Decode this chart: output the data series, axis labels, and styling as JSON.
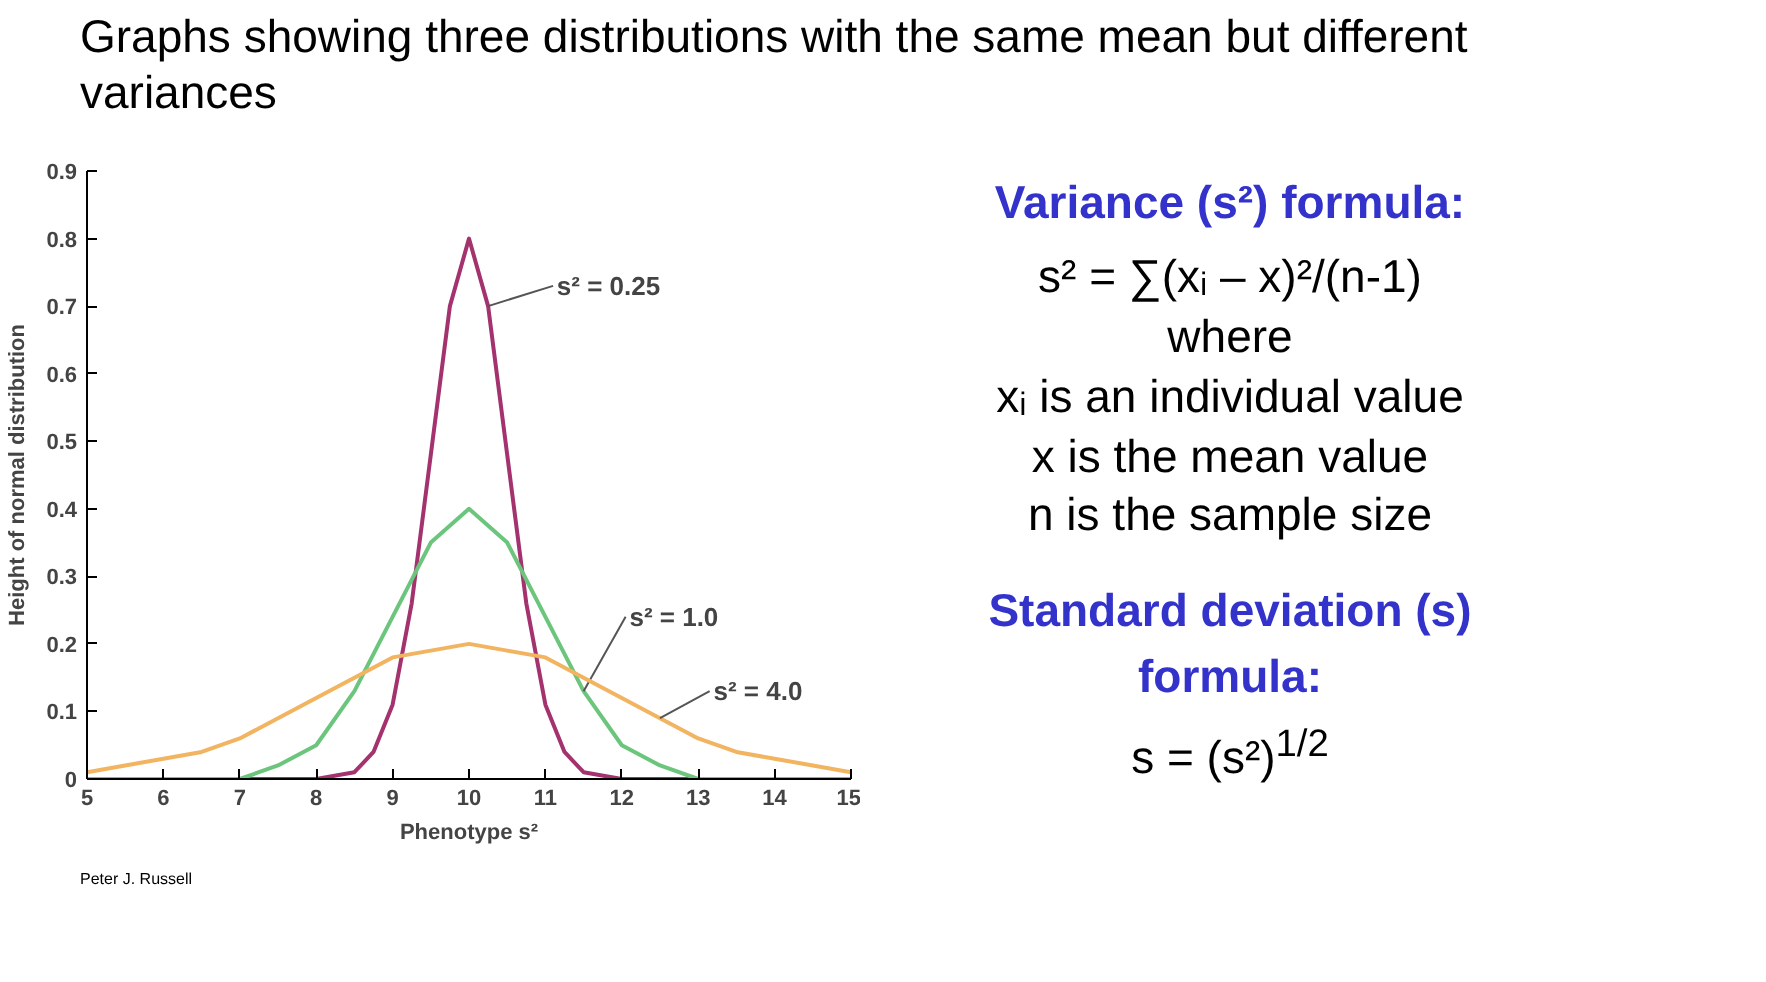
{
  "chart_data": {
    "type": "line",
    "title": "Graphs showing three distributions with the same mean but different variances",
    "xlabel": "Phenotype s²",
    "ylabel": "Height of normal distribution",
    "xlim": [
      5,
      15
    ],
    "xticks": [
      5,
      6,
      7,
      8,
      9,
      10,
      11,
      12,
      13,
      14,
      15
    ],
    "ylim": [
      0,
      0.9
    ],
    "yticks": [
      0,
      0.1,
      0.2,
      0.3,
      0.4,
      0.5,
      0.6,
      0.7,
      0.8,
      0.9
    ],
    "grid": false,
    "marker": "none",
    "line_style": "solid",
    "series": [
      {
        "name": "s² = 0.25",
        "color": "#a3326f",
        "x": [
          5,
          8,
          8.5,
          8.75,
          9,
          9.25,
          9.5,
          9.75,
          10,
          10.25,
          10.5,
          10.75,
          11,
          11.25,
          11.5,
          12,
          15
        ],
        "values": [
          0,
          0,
          0.01,
          0.04,
          0.11,
          0.26,
          0.48,
          0.7,
          0.8,
          0.7,
          0.48,
          0.26,
          0.11,
          0.04,
          0.01,
          0,
          0
        ]
      },
      {
        "name": "s² = 1.0",
        "color": "#6cc57c",
        "x": [
          5,
          7,
          7.5,
          8,
          8.5,
          9,
          9.5,
          10,
          10.5,
          11,
          11.5,
          12,
          12.5,
          13,
          15
        ],
        "values": [
          0,
          0,
          0.02,
          0.05,
          0.13,
          0.24,
          0.35,
          0.4,
          0.35,
          0.24,
          0.13,
          0.05,
          0.02,
          0,
          0
        ]
      },
      {
        "name": "s² = 4.0",
        "color": "#f2b461",
        "x": [
          5,
          5.5,
          6,
          6.5,
          7,
          7.5,
          8,
          8.5,
          9,
          9.5,
          10,
          10.5,
          11,
          11.5,
          12,
          12.5,
          13,
          13.5,
          14,
          14.5,
          15
        ],
        "values": [
          0.01,
          0.02,
          0.03,
          0.04,
          0.06,
          0.09,
          0.12,
          0.15,
          0.18,
          0.19,
          0.2,
          0.19,
          0.18,
          0.15,
          0.12,
          0.09,
          0.06,
          0.04,
          0.03,
          0.02,
          0.01
        ]
      }
    ],
    "annotations": [
      "Variance (s²) formula:",
      "s² = ∑(xᵢ – x)²/(n-1)",
      "where",
      "xᵢ is an individual value",
      "x is the mean value",
      "n is the sample size",
      "Standard deviation (s) formula:",
      "s = (s²)$^{1/2}$",
      "Peter J. Russell"
    ]
  }
}
